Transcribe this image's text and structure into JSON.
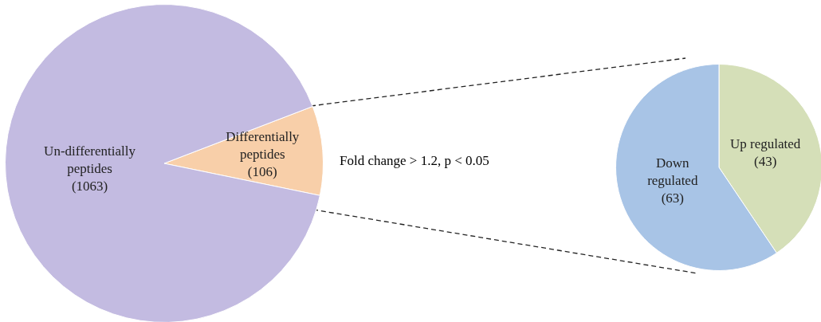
{
  "chart_data": [
    {
      "type": "pie",
      "categories": [
        "Differentially peptides",
        "Un-differentially peptides"
      ],
      "values": [
        106,
        1063
      ],
      "colors": [
        "#f8cfa9",
        "#c3bbe1"
      ],
      "value_labels": [
        "(106)",
        "(1063)"
      ],
      "legend": false,
      "annotations": [
        "Fold change > 1.2, p < 0.05"
      ]
    },
    {
      "type": "pie",
      "categories": [
        "Up regulated",
        "Down regulated"
      ],
      "values": [
        43,
        63
      ],
      "colors": [
        "#d5dfb8",
        "#a8c4e6"
      ],
      "value_labels": [
        "(43)",
        "(63)"
      ],
      "legend": false
    }
  ]
}
